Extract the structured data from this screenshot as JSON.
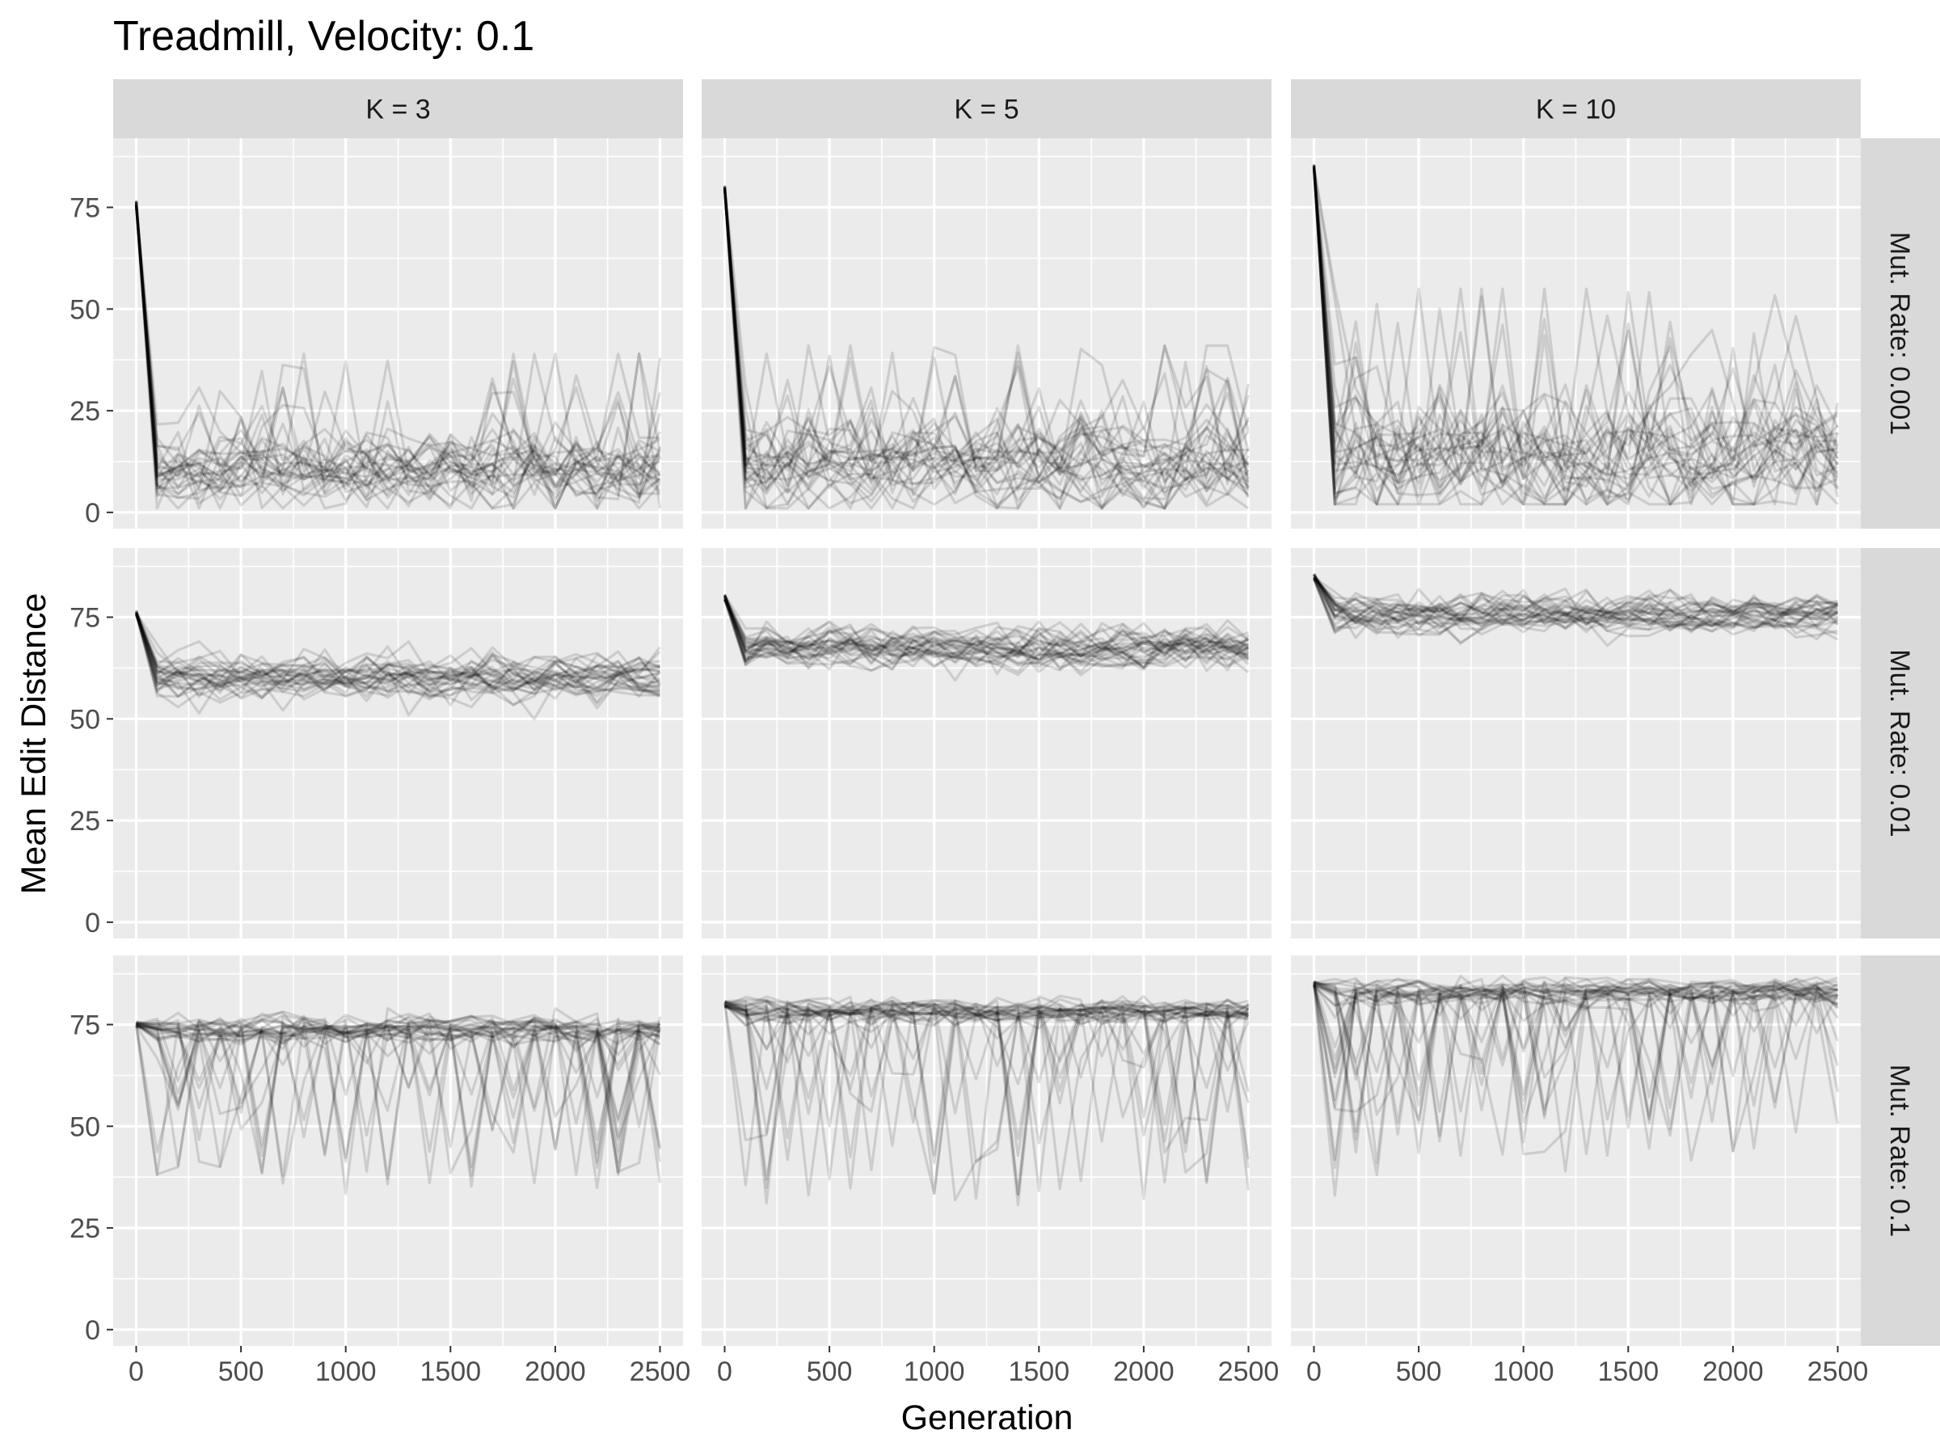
{
  "chart_data": {
    "type": "line",
    "title": "Treadmill, Velocity: 0.1",
    "xlabel": "Generation",
    "ylabel": "Mean Edit Distance",
    "facet_columns": [
      "K = 3",
      "K = 5",
      "K = 10"
    ],
    "facet_rows": [
      "Mut. Rate: 0.001",
      "Mut. Rate: 0.01",
      "Mut. Rate: 0.1"
    ],
    "xlim": [
      -110,
      2610
    ],
    "ylim": [
      -4,
      92
    ],
    "x_ticks": [
      0,
      500,
      1000,
      1500,
      2000,
      2500
    ],
    "y_ticks": [
      0,
      25,
      50,
      75
    ],
    "grid": true,
    "line_color": "#000000",
    "line_opacity": 0.13,
    "panel_background": "#ebebeb",
    "strip_background": "#d9d9d9",
    "series_per_panel": 30,
    "x_step": 100,
    "panels": [
      {
        "row": 0,
        "col": 0,
        "start": 76,
        "settle_x": 100,
        "mean": 10,
        "spread": 5,
        "skew": "up",
        "max": 39,
        "min": 1
      },
      {
        "row": 0,
        "col": 1,
        "start": 80,
        "settle_x": 100,
        "mean": 11,
        "spread": 6,
        "skew": "up",
        "max": 41,
        "min": 1
      },
      {
        "row": 0,
        "col": 2,
        "start": 85,
        "settle_x": 100,
        "mean": 14,
        "spread": 8,
        "skew": "up",
        "max": 55,
        "min": 2
      },
      {
        "row": 1,
        "col": 0,
        "start": 76,
        "settle_x": 100,
        "mean": 60,
        "spread": 3.2,
        "skew": "none",
        "max": 69,
        "min": 45
      },
      {
        "row": 1,
        "col": 1,
        "start": 80,
        "settle_x": 100,
        "mean": 67,
        "spread": 3,
        "skew": "none",
        "max": 77,
        "min": 56
      },
      {
        "row": 1,
        "col": 2,
        "start": 85,
        "settle_x": 100,
        "mean": 76,
        "spread": 2.6,
        "skew": "none",
        "max": 82,
        "min": 61
      },
      {
        "row": 2,
        "col": 0,
        "start": 75,
        "settle_x": 0,
        "mean": 74,
        "spread": 1.8,
        "skew": "down",
        "max": 79,
        "min": 29
      },
      {
        "row": 2,
        "col": 1,
        "start": 80,
        "settle_x": 0,
        "mean": 78.5,
        "spread": 1.6,
        "skew": "down",
        "max": 84,
        "min": 22
      },
      {
        "row": 2,
        "col": 2,
        "start": 85,
        "settle_x": 0,
        "mean": 83,
        "spread": 1.8,
        "skew": "down",
        "max": 87,
        "min": 33
      }
    ]
  }
}
